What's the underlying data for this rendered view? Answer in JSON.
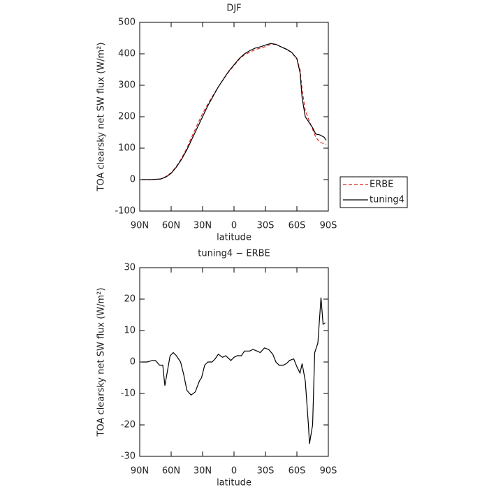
{
  "chart_data": [
    {
      "type": "line",
      "title": "DJF",
      "x_label": "latitude",
      "y_label": "TOA clearsky net SW flux (W/m²)",
      "x": [
        88,
        80,
        70,
        65,
        60,
        55,
        50,
        45,
        40,
        35,
        30,
        25,
        20,
        15,
        10,
        5,
        0,
        -5,
        -10,
        -15,
        -20,
        -25,
        -30,
        -35,
        -40,
        -45,
        -50,
        -55,
        -60,
        -63,
        -65,
        -68,
        -72,
        -75,
        -78,
        -82,
        -86,
        -88
      ],
      "series": [
        {
          "name": "ERBE",
          "color": "#dd2222",
          "dash": true,
          "values": [
            0,
            0,
            2,
            10,
            22,
            42,
            68,
            100,
            138,
            175,
            210,
            240,
            268,
            295,
            320,
            343,
            363,
            383,
            397,
            405,
            413,
            418,
            423,
            430,
            430,
            422,
            414,
            404,
            383,
            350,
            285,
            220,
            185,
            160,
            135,
            118,
            115,
            112
          ]
        },
        {
          "name": "tuning4",
          "color": "#000000",
          "dash": false,
          "values": [
            0,
            0,
            2,
            8,
            20,
            40,
            65,
            95,
            130,
            165,
            200,
            235,
            265,
            295,
            320,
            345,
            365,
            385,
            400,
            410,
            418,
            422,
            428,
            433,
            430,
            422,
            415,
            405,
            385,
            340,
            260,
            200,
            180,
            165,
            145,
            142,
            135,
            125
          ]
        }
      ],
      "xlim": [
        90,
        -90
      ],
      "xticks": [
        {
          "value": 90,
          "label": "90N"
        },
        {
          "value": 60,
          "label": "60N"
        },
        {
          "value": 30,
          "label": "30N"
        },
        0,
        {
          "value": -30,
          "label": "30S"
        },
        {
          "value": -60,
          "label": "60S"
        },
        {
          "value": -90,
          "label": "90S"
        }
      ],
      "ylim": [
        -100,
        500
      ],
      "yticks": [
        -100,
        0,
        100,
        200,
        300,
        400,
        500
      ],
      "legend": "right"
    },
    {
      "type": "line",
      "title": "tuning4 − ERBE",
      "x_label": "latitude",
      "y_label": "TOA clearsky net SW flux (W/m²)",
      "x": [
        88,
        83,
        78,
        75,
        71,
        68,
        66,
        61,
        58,
        55,
        51,
        48,
        45,
        41,
        37,
        33,
        31,
        28,
        25,
        21,
        18,
        15,
        11,
        8,
        3,
        0,
        -3,
        -7,
        -10,
        -15,
        -18,
        -22,
        -25,
        -29,
        -33,
        -37,
        -40,
        -43,
        -47,
        -50,
        -53,
        -57,
        -60,
        -63,
        -65,
        -68,
        -71,
        -72,
        -75,
        -77,
        -80,
        -83,
        -85,
        -87
      ],
      "series": [
        {
          "name": "tuning4",
          "color": "#000000",
          "dash": false,
          "values": [
            0,
            0,
            0.5,
            0.5,
            -1,
            -1,
            -7.5,
            2,
            3,
            2,
            0,
            -4,
            -9,
            -10.5,
            -9.5,
            -6,
            -5,
            -1,
            0,
            0,
            1,
            2.5,
            1.5,
            2,
            0.5,
            1.5,
            2,
            2,
            3.5,
            3.5,
            4,
            3.5,
            3,
            4.5,
            4,
            2.5,
            0,
            -1,
            -1,
            -0.5,
            0.5,
            1,
            -1.5,
            -3.5,
            -0.5,
            -6,
            -20,
            -26,
            -20,
            3,
            6,
            20.5,
            12,
            12.5
          ]
        }
      ],
      "xlim": [
        90,
        -90
      ],
      "xticks": [
        {
          "value": 90,
          "label": "90N"
        },
        {
          "value": 60,
          "label": "60N"
        },
        {
          "value": 30,
          "label": "30N"
        },
        0,
        {
          "value": -30,
          "label": "30S"
        },
        {
          "value": -60,
          "label": "60S"
        },
        {
          "value": -90,
          "label": "90S"
        }
      ],
      "ylim": [
        -30,
        30
      ],
      "yticks": [
        -30,
        -20,
        -10,
        0,
        10,
        20,
        30
      ]
    }
  ]
}
